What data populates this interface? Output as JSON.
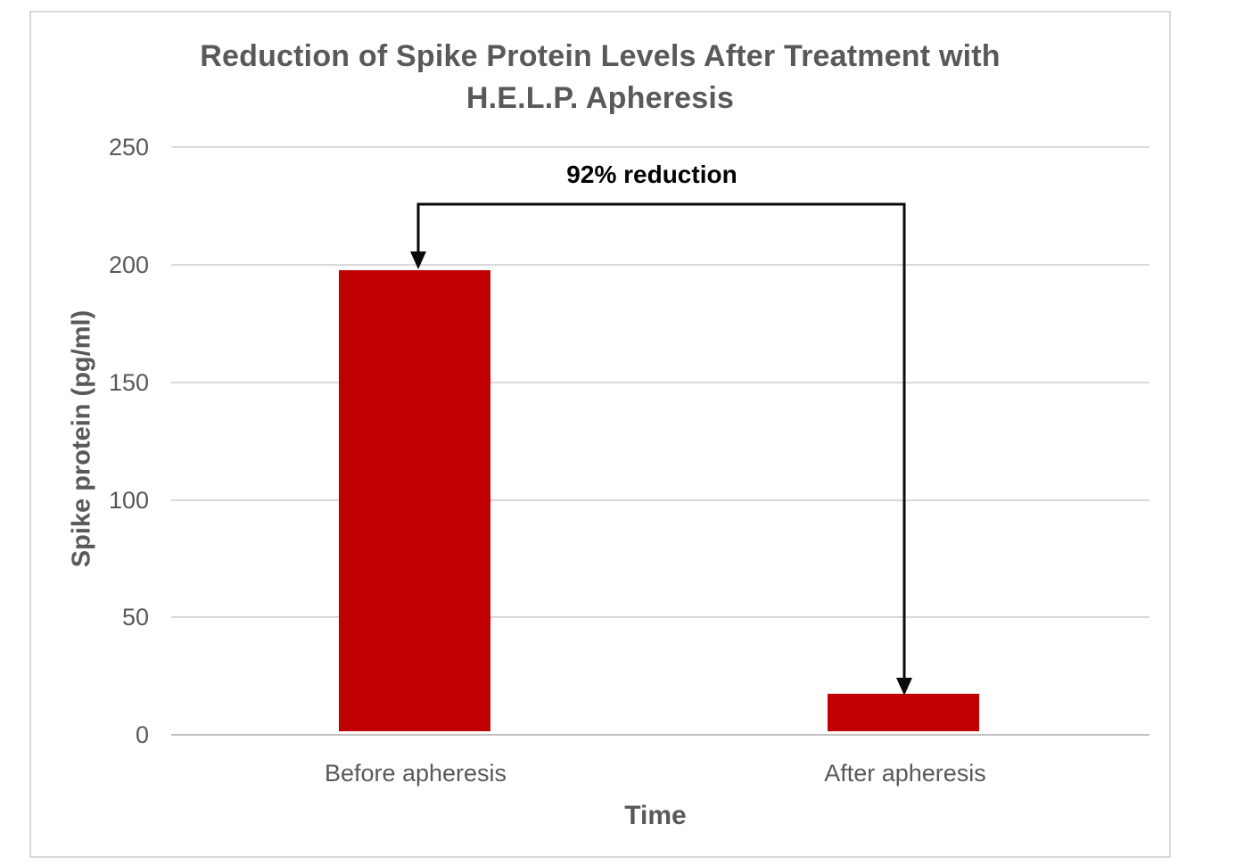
{
  "chart_data": {
    "type": "bar",
    "title": "Reduction of Spike Protein Levels After Treatment with H.E.L.P. Apheresis",
    "title_lines": [
      "Reduction of Spike Protein Levels After Treatment with",
      "H.E.L.P. Apheresis"
    ],
    "categories": [
      "Before apheresis",
      "After apheresis"
    ],
    "values": [
      196,
      16
    ],
    "xlabel": "Time",
    "ylabel": "Spike protein (pg/ml)",
    "ylim": [
      0,
      250
    ],
    "ytick_interval": 50,
    "yticks": [
      "250",
      "200",
      "150",
      "100",
      "50",
      "0"
    ],
    "annotation": "92% reduction",
    "bar_color": "#c00000",
    "grid": true,
    "legend": false,
    "colors": {
      "bar": "#c00000",
      "gridline": "#d9d9d9",
      "zero_axis": "#bfbfbf",
      "frame_border": "#d9d9d9",
      "text": "#595959",
      "annotation_text": "#000000",
      "arrow": "#000000"
    }
  }
}
